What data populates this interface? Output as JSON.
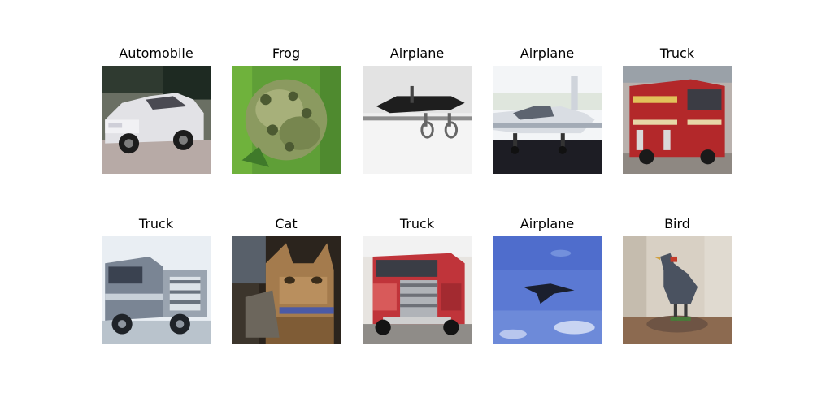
{
  "figure": {
    "images": [
      {
        "title": "Automobile",
        "subject": "white-car"
      },
      {
        "title": "Frog",
        "subject": "frog"
      },
      {
        "title": "Airplane",
        "subject": "airplane-sketch"
      },
      {
        "title": "Airplane",
        "subject": "small-airplane"
      },
      {
        "title": "Truck",
        "subject": "red-fire-truck"
      },
      {
        "title": "Truck",
        "subject": "silver-truck"
      },
      {
        "title": "Cat",
        "subject": "cat"
      },
      {
        "title": "Truck",
        "subject": "red-semi-truck"
      },
      {
        "title": "Airplane",
        "subject": "airplane-in-sky"
      },
      {
        "title": "Bird",
        "subject": "bird-figurine"
      }
    ]
  }
}
